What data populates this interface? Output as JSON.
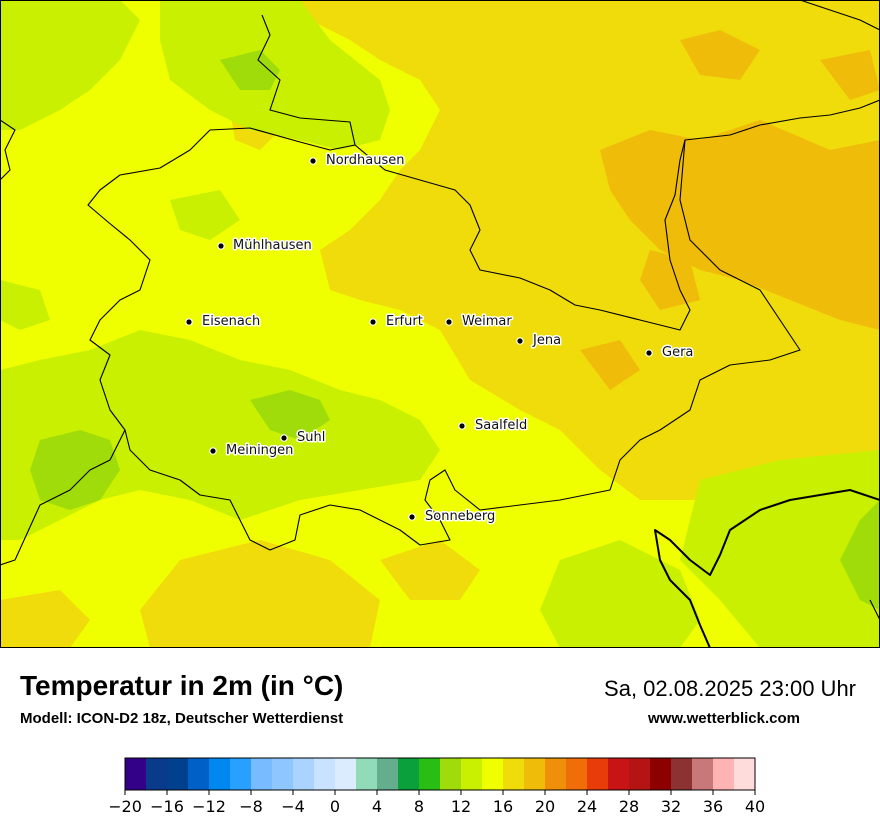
{
  "map": {
    "cities": [
      {
        "name": "Nordhausen",
        "id": "nordhausen"
      },
      {
        "name": "Mühlhausen",
        "id": "muehlhausen"
      },
      {
        "name": "Eisenach",
        "id": "eisenach"
      },
      {
        "name": "Erfurt",
        "id": "erfurt"
      },
      {
        "name": "Weimar",
        "id": "weimar"
      },
      {
        "name": "Jena",
        "id": "jena"
      },
      {
        "name": "Gera",
        "id": "gera"
      },
      {
        "name": "Saalfeld",
        "id": "saalfeld"
      },
      {
        "name": "Suhl",
        "id": "suhl"
      },
      {
        "name": "Meiningen",
        "id": "meiningen"
      },
      {
        "name": "Sonneberg",
        "id": "sonneberg"
      }
    ]
  },
  "footer": {
    "title": "Temperatur in 2m (in °C)",
    "subtitle": "Modell: ICON-D2 18z, Deutscher Wetterdienst",
    "datetime": "Sa, 02.08.2025 23:00 Uhr",
    "website": "www.wetterblick.com"
  },
  "legend": {
    "tick_labels": [
      "−20",
      "−16",
      "−12",
      "−8",
      "−4",
      "0",
      "4",
      "8",
      "12",
      "16",
      "20",
      "24",
      "28",
      "32",
      "36",
      "40"
    ],
    "colors": [
      "#330088",
      "#0a3a8a",
      "#00408c",
      "#0060c8",
      "#0088f0",
      "#28a0ff",
      "#78bcff",
      "#8ec6ff",
      "#aad4ff",
      "#c8e2ff",
      "#dcecff",
      "#90dcb8",
      "#64ae8e",
      "#0aa03c",
      "#28be14",
      "#a0dc0a",
      "#c8f000",
      "#f0ff00",
      "#f0dc0a",
      "#f0bc0a",
      "#f0900a",
      "#f06e0a",
      "#e83c0a",
      "#c81414",
      "#b41414",
      "#8c0000",
      "#8c3232",
      "#c87878",
      "#ffb4b4",
      "#ffdcdc"
    ],
    "palette": {
      "yellow": "#f0ff00",
      "gold": "#f0dc0a",
      "orange": "#f0bc0a",
      "lime": "#c8f000",
      "green": "#a0dc0a"
    }
  }
}
